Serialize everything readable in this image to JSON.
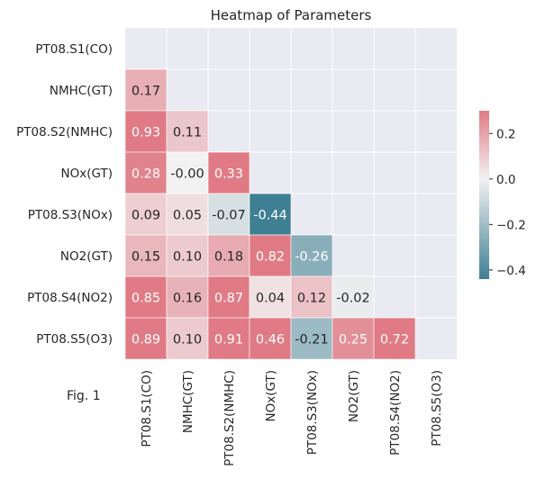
{
  "figure": {
    "caption": "Fig. 1"
  },
  "chart_data": {
    "type": "heatmap",
    "title": "Heatmap of Parameters",
    "row_labels": [
      "PT08.S1(CO)",
      "NMHC(GT)",
      "PT08.S2(NMHC)",
      "NOx(GT)",
      "PT08.S3(NOx)",
      "NO2(GT)",
      "PT08.S4(NO2)",
      "PT08.S5(O3)"
    ],
    "col_labels": [
      "PT08.S1(CO)",
      "NMHC(GT)",
      "PT08.S2(NMHC)",
      "NOx(GT)",
      "PT08.S3(NOx)",
      "NO2(GT)",
      "PT08.S4(NO2)",
      "PT08.S5(O3)"
    ],
    "mask": "upper-triangle-including-diagonal",
    "values": [
      [
        null,
        null,
        null,
        null,
        null,
        null,
        null,
        null
      ],
      [
        0.17,
        null,
        null,
        null,
        null,
        null,
        null,
        null
      ],
      [
        0.93,
        0.11,
        null,
        null,
        null,
        null,
        null,
        null
      ],
      [
        0.28,
        -0.0,
        0.33,
        null,
        null,
        null,
        null,
        null
      ],
      [
        0.09,
        0.05,
        -0.07,
        -0.44,
        null,
        null,
        null,
        null
      ],
      [
        0.15,
        0.1,
        0.18,
        0.82,
        -0.26,
        null,
        null,
        null
      ],
      [
        0.85,
        0.16,
        0.87,
        0.04,
        0.12,
        -0.02,
        null,
        null
      ],
      [
        0.89,
        0.1,
        0.91,
        0.46,
        -0.21,
        0.25,
        0.72,
        null
      ]
    ],
    "value_labels": [
      [],
      [
        "0.17"
      ],
      [
        "0.93",
        "0.11"
      ],
      [
        "0.28",
        "-0.00",
        "0.33"
      ],
      [
        "0.09",
        "0.05",
        "-0.07",
        "-0.44"
      ],
      [
        "0.15",
        "0.10",
        "0.18",
        "0.82",
        "-0.26"
      ],
      [
        "0.85",
        "0.16",
        "0.87",
        "0.04",
        "0.12",
        "-0.02"
      ],
      [
        "0.89",
        "0.10",
        "0.91",
        "0.46",
        "-0.21",
        "0.25",
        "0.72"
      ]
    ],
    "colorbar": {
      "vmin": -0.44,
      "vmax": 0.3,
      "ticks": [
        0.2,
        0.0,
        -0.2,
        -0.4
      ],
      "tick_labels": [
        "0.2",
        "0.0",
        "−0.2",
        "−0.4"
      ],
      "color_negative": "#3f7f93",
      "color_center": "#f2f2f2",
      "color_positive": "#e07b85"
    },
    "background_color": "#eaeaf2",
    "grid_color": "#ffffff"
  }
}
